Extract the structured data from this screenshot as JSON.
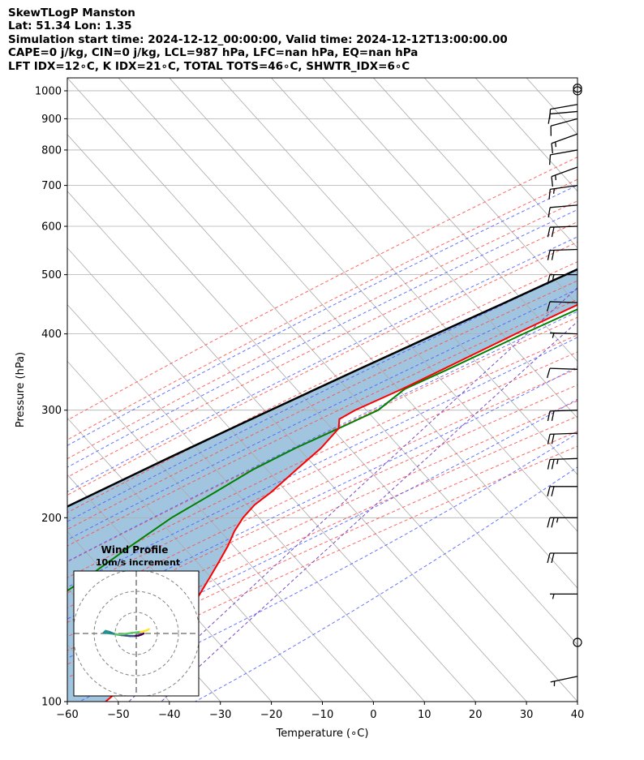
{
  "header": {
    "lines": [
      "SkewTLogP Manston",
      "Lat: 51.34   Lon: 1.35",
      "Simulation start time: 2024-12-12_00:00:00, Valid time: 2024-12-12T13:00:00.00",
      "CAPE=0 j/kg, CIN=0 j/kg, LCL=987 hPa, LFC=nan hPa, EQ=nan hPa",
      "LFT IDX=12∘C, K IDX=21∘C, TOTAL TOTS=46∘C, SHWTR_IDX=6∘C"
    ]
  },
  "chart_data": {
    "type": "skewt-logp",
    "xlabel": "Temperature (∘C)",
    "ylabel": "Pressure (hPa)",
    "xlim": [
      -60,
      40
    ],
    "ylim": [
      1050,
      100
    ],
    "y_scale": "log",
    "x_ticks": [
      -60,
      -50,
      -40,
      -30,
      -20,
      -10,
      0,
      10,
      20,
      30,
      40
    ],
    "y_ticks": [
      1000,
      900,
      800,
      700,
      600,
      500,
      400,
      300,
      200,
      100
    ],
    "grid": true,
    "colors": {
      "temperature": "#ff0000",
      "dewpoint": "#008000",
      "parcel": "#000000",
      "shade": "#a2c5df",
      "isotherm": "#aaaaaa",
      "dry_adiabat": "#ff4a4a",
      "moist_adiabat": "#4a5cff",
      "mixing_ratio": "#7a4ac0"
    },
    "series": [
      {
        "key": "temperature",
        "p": [
          1025,
          1000,
          975,
          950,
          925,
          900,
          875,
          850,
          825,
          800,
          775,
          750,
          725,
          700,
          650,
          600,
          550,
          500,
          450,
          400,
          350,
          325,
          300,
          290,
          280,
          260,
          240,
          220,
          210,
          200,
          190,
          180,
          170,
          160,
          150,
          140,
          130,
          120,
          110,
          100
        ],
        "t": [
          7.2,
          7.5,
          7.1,
          6.0,
          5.0,
          4.2,
          5.5,
          6.0,
          5.6,
          4.0,
          2.3,
          0.6,
          -1.3,
          -3.4,
          -7.4,
          -11.8,
          -16.8,
          -22.6,
          -29.5,
          -37.0,
          -45.0,
          -49.5,
          -55.0,
          -56.5,
          -55.0,
          -55.0,
          -56.0,
          -57.0,
          -58.0,
          -58.0,
          -57.3,
          -56.0,
          -55.0,
          -54.0,
          -53.0,
          -52.0,
          -51.5,
          -51.0,
          -51.0,
          -52.5
        ]
      },
      {
        "key": "dewpoint",
        "p": [
          1025,
          1000,
          975,
          950,
          925,
          900,
          875,
          850,
          800,
          750,
          700,
          650,
          600,
          550,
          500,
          450,
          400,
          350,
          325,
          300,
          280,
          260,
          240,
          220,
          200,
          180,
          160,
          140,
          120,
          100
        ],
        "t": [
          5.0,
          5.5,
          5.8,
          6.0,
          5.8,
          5.0,
          4.8,
          4.5,
          3.2,
          1.2,
          -1.8,
          -5.8,
          -10.0,
          -14.8,
          -20.5,
          -27.5,
          -35.5,
          -44.0,
          -49.0,
          -50.5,
          -55.0,
          -60.0,
          -64.5,
          -68.0,
          -72.0,
          -75.0,
          -78.0,
          -82.0,
          -83.0,
          -84.0
        ]
      },
      {
        "key": "parcel",
        "p": [
          1025,
          1000,
          987,
          950,
          900,
          850,
          800,
          750,
          700,
          650,
          600,
          550,
          500,
          450,
          400,
          350,
          300,
          250,
          200,
          150,
          100
        ],
        "t": [
          7.2,
          5.3,
          4.4,
          2.4,
          -0.7,
          -4.0,
          -7.6,
          -11.5,
          -15.8,
          -20.5,
          -25.6,
          -31.3,
          -37.6,
          -44.6,
          -52.6,
          -61.5,
          -71.6,
          -83.3,
          -97.0,
          -113.5,
          -134.0
        ]
      }
    ],
    "isotherms": [
      -160,
      -150,
      -140,
      -130,
      -120,
      -110,
      -100,
      -90,
      -80,
      -70,
      -60,
      -50,
      -40,
      -30,
      -20,
      -10,
      0,
      10,
      20,
      30,
      40
    ],
    "dry_adiabats_theta_c": [
      -40,
      -30,
      -20,
      -10,
      0,
      10,
      20,
      30,
      40,
      50,
      60,
      70,
      80,
      90,
      100,
      110,
      120
    ],
    "moist_adiabats_start_c": [
      -25,
      -15,
      -5,
      5,
      10,
      15,
      20,
      25,
      30,
      35,
      40
    ],
    "mixing_ratio_lines_gkg": [
      0.5,
      1
    ],
    "wind_barbs": [
      {
        "p": 1010,
        "speed_kt": 0,
        "dir": 0
      },
      {
        "p": 1000,
        "speed_kt": 0,
        "dir": 0
      },
      {
        "p": 950,
        "speed_kt": 10,
        "dir": 260
      },
      {
        "p": 925,
        "speed_kt": 10,
        "dir": 265
      },
      {
        "p": 900,
        "speed_kt": 10,
        "dir": 255
      },
      {
        "p": 850,
        "speed_kt": 15,
        "dir": 250
      },
      {
        "p": 800,
        "speed_kt": 10,
        "dir": 260
      },
      {
        "p": 750,
        "speed_kt": 15,
        "dir": 250
      },
      {
        "p": 700,
        "speed_kt": 15,
        "dir": 262
      },
      {
        "p": 650,
        "speed_kt": 10,
        "dir": 265
      },
      {
        "p": 600,
        "speed_kt": 20,
        "dir": 268
      },
      {
        "p": 550,
        "speed_kt": 20,
        "dir": 268
      },
      {
        "p": 500,
        "speed_kt": 15,
        "dir": 270
      },
      {
        "p": 450,
        "speed_kt": 10,
        "dir": 272
      },
      {
        "p": 400,
        "speed_kt": 5,
        "dir": 272
      },
      {
        "p": 350,
        "speed_kt": 10,
        "dir": 272
      },
      {
        "p": 300,
        "speed_kt": 20,
        "dir": 268
      },
      {
        "p": 275,
        "speed_kt": 20,
        "dir": 268
      },
      {
        "p": 250,
        "speed_kt": 25,
        "dir": 268
      },
      {
        "p": 225,
        "speed_kt": 20,
        "dir": 270
      },
      {
        "p": 200,
        "speed_kt": 25,
        "dir": 270
      },
      {
        "p": 175,
        "speed_kt": 20,
        "dir": 270
      },
      {
        "p": 150,
        "speed_kt": 5,
        "dir": 270
      },
      {
        "p": 125,
        "speed_kt": 0,
        "dir": 0
      },
      {
        "p": 110,
        "speed_kt": 5,
        "dir": 258
      }
    ],
    "hodograph": {
      "title": "Wind Profile",
      "subtitle": "10m/s increment",
      "rings_ms": [
        10,
        20,
        30
      ],
      "u": [
        3.5,
        2.5,
        1.0,
        -1.0,
        -3.0,
        -5.0,
        -7.0,
        -9.0,
        -11.0,
        -13.0,
        -14.5,
        -15.0,
        -15.5,
        -14.0,
        -12.0,
        -10.0,
        -8.0,
        -6.0,
        -4.0,
        -2.0,
        0.0,
        2.0,
        3.5,
        5.0,
        6.0
      ],
      "v": [
        0.0,
        -0.5,
        -1.0,
        -1.2,
        -1.2,
        -1.0,
        -0.8,
        -0.5,
        0.0,
        0.8,
        1.2,
        0.8,
        0.3,
        0.2,
        0.0,
        -0.3,
        -0.5,
        -0.3,
        0.0,
        0.3,
        0.5,
        0.8,
        1.0,
        1.5,
        2.0
      ]
    }
  }
}
